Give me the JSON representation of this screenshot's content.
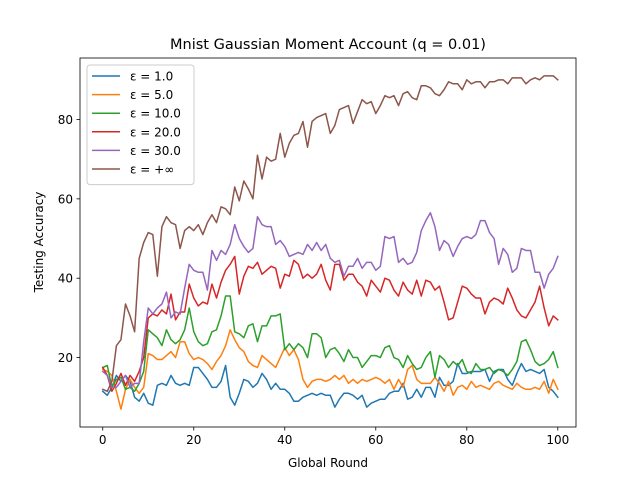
{
  "chart_data": {
    "type": "line",
    "title": "Mnist Gaussian Moment Account (q = 0.01)",
    "xlabel": "Global Round",
    "ylabel": "Testing Accuracy",
    "xlim": [
      -5,
      104
    ],
    "ylim": [
      2.5,
      95.5
    ],
    "xticks": [
      0,
      20,
      40,
      60,
      80,
      100
    ],
    "yticks": [
      20,
      40,
      60,
      80
    ],
    "grid": false,
    "legend_position": "upper-left",
    "series": [
      {
        "name": "ε = 1.0",
        "color": "#1f77b4",
        "values": [
          11.5,
          10.5,
          12.5,
          15.5,
          14.0,
          15.5,
          14.0,
          10.0,
          9.0,
          11.0,
          8.5,
          8.0,
          13.0,
          13.5,
          13.0,
          15.5,
          13.5,
          13.0,
          13.5,
          13.0,
          17.5,
          17.5,
          16.0,
          14.5,
          12.5,
          12.5,
          14.0,
          18.0,
          10.0,
          8.0,
          11.0,
          14.5,
          14.0,
          12.5,
          13.5,
          16.0,
          14.5,
          12.0,
          13.5,
          12.0,
          12.0,
          11.0,
          9.0,
          9.0,
          10.0,
          10.5,
          11.0,
          10.5,
          11.0,
          10.5,
          10.5,
          7.5,
          9.5,
          11.0,
          11.0,
          10.5,
          9.5,
          10.5,
          7.5,
          8.5,
          9.0,
          9.5,
          9.5,
          11.0,
          11.5,
          11.5,
          13.5,
          9.5,
          10.0,
          12.0,
          10.0,
          12.5,
          12.5,
          10.0,
          15.0,
          13.0,
          13.0,
          14.0,
          18.5,
          16.0,
          16.0,
          16.5,
          16.5,
          16.5,
          17.0,
          14.0,
          16.5,
          17.0,
          17.0,
          14.5,
          13.0,
          16.0,
          18.5,
          16.5,
          17.0,
          16.5,
          16.0,
          17.0,
          12.5,
          11.5,
          10.0
        ]
      },
      {
        "name": "ε = 5.0",
        "color": "#ff7f0e",
        "values": [
          17.0,
          16.5,
          15.5,
          11.5,
          7.0,
          12.0,
          14.5,
          12.5,
          11.0,
          12.5,
          21.0,
          20.5,
          19.5,
          19.5,
          20.5,
          21.5,
          20.0,
          24.0,
          24.0,
          21.0,
          19.5,
          20.0,
          19.5,
          18.5,
          17.0,
          19.0,
          20.5,
          23.0,
          27.0,
          24.5,
          22.5,
          21.5,
          19.0,
          18.0,
          17.5,
          20.5,
          19.5,
          18.5,
          17.5,
          20.0,
          22.5,
          20.5,
          22.0,
          19.5,
          14.5,
          12.5,
          14.0,
          14.5,
          14.5,
          14.0,
          14.5,
          15.5,
          14.5,
          15.5,
          13.5,
          14.5,
          13.5,
          14.5,
          14.0,
          14.5,
          15.0,
          14.5,
          13.5,
          14.5,
          12.0,
          14.5,
          12.5,
          17.0,
          18.0,
          14.5,
          13.5,
          13.5,
          13.5,
          15.0,
          13.5,
          11.5,
          14.0,
          10.5,
          12.5,
          13.0,
          12.0,
          14.0,
          12.5,
          13.0,
          12.5,
          12.0,
          13.5,
          14.0,
          13.0,
          12.5,
          12.0,
          13.5,
          12.5,
          12.0,
          12.0,
          12.5,
          12.0,
          14.0,
          11.0,
          14.5,
          12.0
        ]
      },
      {
        "name": "ε = 10.0",
        "color": "#2ca02c",
        "values": [
          17.5,
          18.0,
          12.5,
          14.5,
          15.0,
          12.0,
          12.5,
          11.5,
          13.5,
          16.5,
          27.0,
          26.0,
          25.0,
          23.0,
          27.0,
          24.5,
          23.5,
          24.5,
          27.0,
          32.5,
          26.5,
          24.0,
          23.0,
          23.5,
          26.5,
          27.0,
          30.5,
          35.5,
          35.5,
          26.5,
          26.0,
          25.0,
          28.0,
          28.5,
          24.0,
          28.0,
          28.0,
          30.5,
          30.5,
          31.0,
          22.0,
          23.5,
          22.0,
          23.5,
          22.5,
          20.0,
          26.0,
          26.0,
          25.0,
          20.0,
          22.0,
          22.5,
          21.0,
          19.0,
          22.0,
          20.0,
          20.0,
          17.5,
          19.0,
          20.5,
          20.5,
          20.0,
          22.5,
          23.0,
          20.0,
          19.5,
          17.5,
          20.5,
          18.5,
          17.0,
          17.5,
          20.0,
          21.5,
          15.0,
          20.5,
          19.5,
          17.5,
          19.0,
          18.0,
          19.5,
          16.5,
          16.0,
          18.5,
          17.0,
          17.0,
          17.5,
          16.0,
          17.0,
          16.5,
          15.5,
          17.0,
          19.0,
          24.0,
          24.5,
          22.0,
          19.0,
          18.0,
          18.5,
          19.5,
          21.5,
          17.5
        ]
      },
      {
        "name": "ε = 20.0",
        "color": "#d62728",
        "values": [
          17.5,
          15.5,
          11.5,
          13.5,
          16.0,
          13.0,
          15.5,
          14.0,
          16.5,
          20.0,
          30.0,
          31.0,
          30.5,
          32.0,
          31.0,
          36.0,
          29.5,
          31.5,
          31.5,
          38.5,
          35.0,
          33.0,
          34.0,
          33.5,
          38.5,
          35.0,
          39.0,
          42.0,
          43.5,
          45.5,
          36.0,
          40.5,
          43.0,
          42.5,
          44.0,
          41.0,
          42.0,
          43.0,
          42.5,
          37.5,
          41.0,
          40.5,
          44.5,
          43.5,
          40.0,
          41.0,
          40.0,
          41.0,
          43.5,
          39.5,
          37.0,
          43.5,
          43.5,
          39.5,
          41.0,
          41.0,
          39.0,
          38.0,
          35.5,
          39.5,
          38.0,
          36.5,
          40.0,
          39.5,
          37.0,
          35.5,
          39.0,
          37.0,
          36.0,
          39.5,
          35.5,
          39.5,
          39.0,
          37.0,
          38.0,
          34.0,
          29.5,
          30.0,
          34.0,
          38.0,
          37.5,
          36.0,
          35.0,
          35.0,
          31.0,
          34.0,
          35.0,
          34.5,
          33.5,
          37.5,
          35.0,
          32.0,
          30.5,
          30.0,
          32.0,
          34.0,
          38.0,
          32.5,
          28.0,
          30.5,
          29.5
        ]
      },
      {
        "name": "ε = 30.0",
        "color": "#9467bd",
        "values": [
          16.5,
          15.5,
          12.5,
          12.5,
          14.0,
          15.5,
          12.5,
          13.5,
          13.5,
          24.0,
          32.5,
          31.0,
          32.5,
          33.5,
          36.5,
          30.0,
          31.5,
          31.0,
          37.5,
          43.5,
          42.0,
          41.5,
          41.5,
          37.0,
          47.0,
          44.5,
          47.0,
          46.0,
          48.5,
          53.5,
          50.0,
          48.0,
          46.5,
          47.5,
          55.5,
          53.5,
          53.0,
          53.0,
          48.5,
          49.5,
          48.0,
          45.5,
          46.0,
          46.5,
          46.0,
          48.5,
          47.0,
          49.0,
          47.0,
          48.5,
          45.0,
          44.0,
          44.5,
          40.5,
          43.0,
          43.0,
          45.0,
          42.5,
          44.0,
          44.0,
          42.0,
          43.0,
          50.5,
          50.0,
          50.5,
          44.0,
          45.0,
          43.5,
          44.0,
          46.5,
          52.0,
          54.5,
          56.5,
          53.0,
          47.0,
          49.5,
          48.5,
          45.5,
          48.0,
          50.0,
          50.5,
          50.0,
          51.0,
          54.5,
          54.5,
          51.5,
          50.0,
          43.5,
          47.5,
          46.0,
          41.5,
          42.5,
          47.5,
          47.0,
          47.0,
          41.5,
          41.5,
          37.5,
          41.0,
          42.5,
          45.5
        ]
      },
      {
        "name": "ε = +∞",
        "color": "#8c564b",
        "values": [
          12.0,
          11.5,
          14.0,
          23.0,
          24.5,
          33.5,
          30.5,
          26.5,
          45.0,
          49.0,
          51.5,
          51.0,
          40.5,
          53.0,
          55.5,
          54.0,
          53.5,
          47.5,
          52.0,
          53.0,
          52.0,
          53.5,
          51.0,
          54.0,
          56.0,
          54.0,
          58.0,
          57.5,
          56.0,
          63.0,
          59.5,
          64.5,
          62.5,
          60.0,
          71.0,
          65.0,
          70.5,
          69.5,
          70.0,
          76.5,
          70.5,
          74.0,
          76.0,
          76.5,
          79.5,
          73.0,
          79.5,
          80.5,
          81.0,
          81.5,
          76.5,
          78.5,
          82.5,
          83.0,
          83.5,
          79.0,
          82.0,
          85.0,
          84.0,
          84.5,
          81.5,
          83.5,
          86.0,
          85.5,
          86.0,
          83.5,
          86.5,
          87.0,
          85.5,
          85.0,
          88.5,
          88.5,
          88.0,
          86.5,
          86.0,
          87.5,
          89.5,
          89.0,
          89.0,
          87.5,
          90.0,
          89.0,
          89.5,
          89.5,
          88.0,
          89.5,
          89.5,
          90.0,
          90.0,
          89.0,
          90.5,
          90.5,
          90.5,
          89.0,
          90.0,
          90.5,
          90.0,
          91.0,
          91.0,
          91.0,
          90.0
        ]
      }
    ]
  }
}
